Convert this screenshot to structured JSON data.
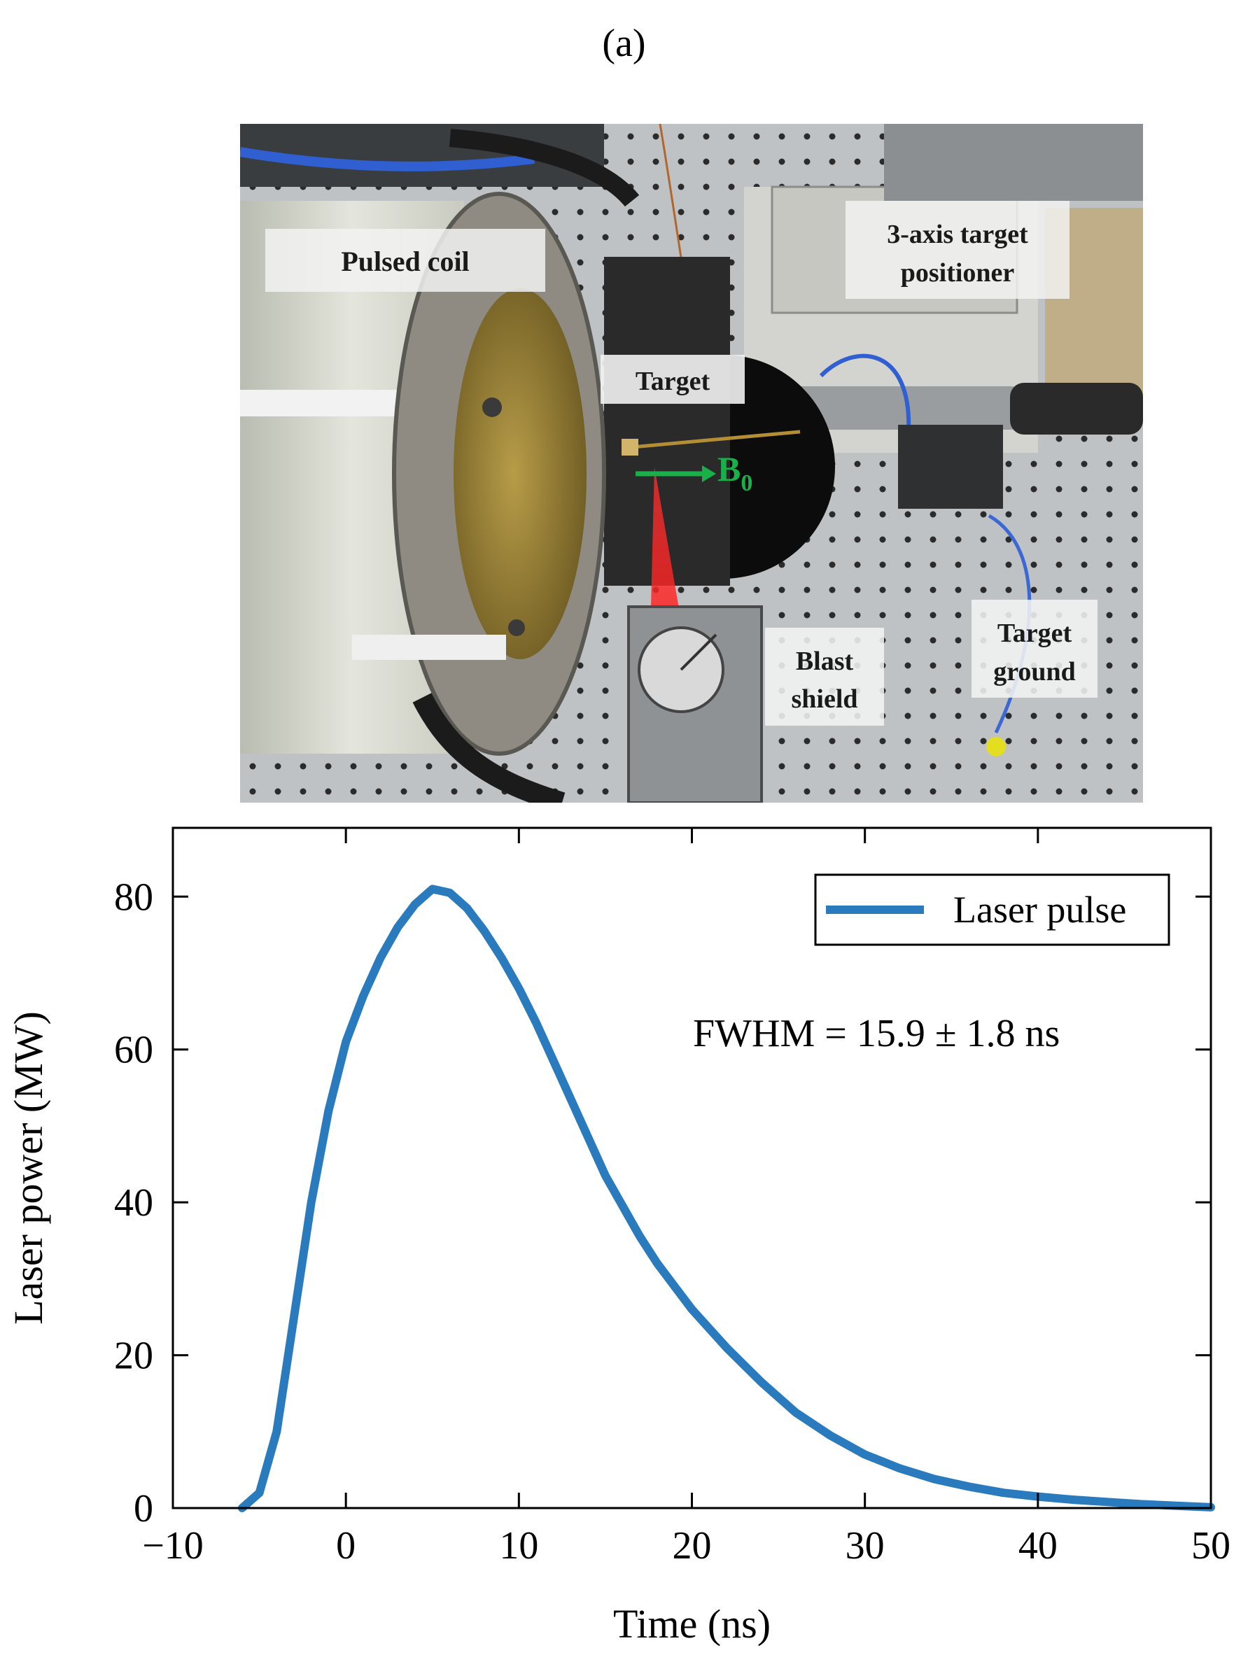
{
  "figure": {
    "panel_label": "(a)"
  },
  "photo": {
    "labels": {
      "pulsed_coil": "Pulsed coil",
      "positioner_line1": "3-axis target",
      "positioner_line2": "positioner",
      "target": "Target",
      "b_field": "B",
      "b_field_sub": "0",
      "blast_line1": "Blast",
      "blast_line2": "shield",
      "ground_line1": "Target",
      "ground_line2": "ground"
    },
    "colors": {
      "laser": "#ff2020",
      "b_arrow": "#19b04a",
      "cable": "#2f5fd0"
    }
  },
  "chart_data": {
    "type": "line",
    "xlabel": "Time (ns)",
    "ylabel": "Laser power (MW)",
    "xlim": [
      -10,
      50
    ],
    "ylim": [
      0,
      89
    ],
    "xticks": [
      -10,
      0,
      10,
      20,
      30,
      40,
      50
    ],
    "xtick_labels": [
      "−10",
      "0",
      "10",
      "20",
      "30",
      "40",
      "50"
    ],
    "yticks": [
      0,
      20,
      40,
      60,
      80
    ],
    "ytick_labels": [
      "0",
      "20",
      "40",
      "60",
      "80"
    ],
    "grid": false,
    "legend": {
      "position": "top-right",
      "entries": [
        "Laser pulse"
      ]
    },
    "annotation": "FWHM = 15.9 ± 1.8 ns",
    "series": [
      {
        "name": "Laser pulse",
        "color": "#2a7bbd",
        "x": [
          -6,
          -5,
          -4,
          -3,
          -2,
          -1,
          0,
          1,
          2,
          3,
          4,
          5,
          6,
          7,
          8,
          9,
          10,
          11,
          12,
          13,
          14,
          15,
          16,
          17,
          18,
          19,
          20,
          22,
          24,
          26,
          28,
          30,
          32,
          34,
          36,
          38,
          40,
          42,
          44,
          46,
          48,
          50
        ],
        "y": [
          0,
          2,
          10,
          25,
          40,
          52,
          61,
          67,
          72,
          76,
          79,
          81,
          80.5,
          78.5,
          75.5,
          72,
          68,
          63.5,
          58.5,
          53.5,
          48.5,
          43.5,
          39.5,
          35.5,
          32,
          29,
          26,
          21,
          16.5,
          12.5,
          9.5,
          7,
          5.2,
          3.8,
          2.8,
          2.0,
          1.5,
          1.1,
          0.8,
          0.5,
          0.3,
          0.1
        ]
      }
    ]
  }
}
